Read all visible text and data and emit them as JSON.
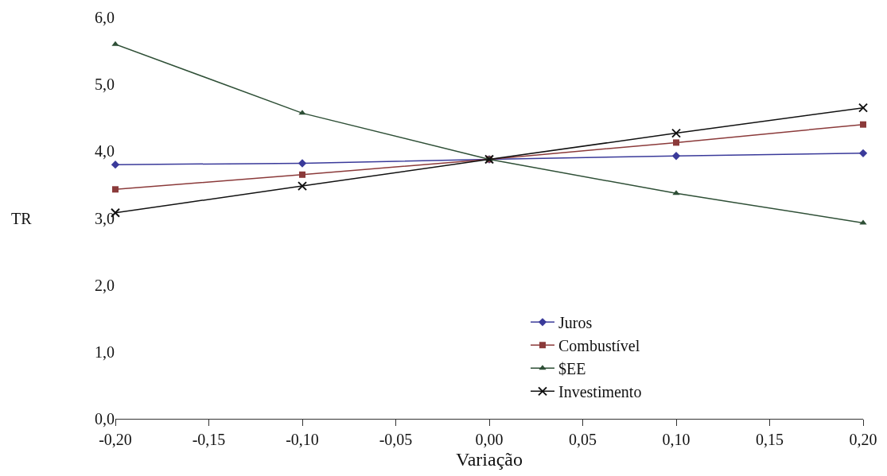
{
  "chart_data": {
    "type": "line",
    "xlabel": "Variação",
    "ylabel": "TR",
    "x": [
      -0.2,
      -0.1,
      0,
      0.1,
      0.2
    ],
    "series": [
      {
        "name": "Juros",
        "color": "#3a3a9a",
        "marker": "diamond",
        "values": [
          3.8,
          3.82,
          3.88,
          3.93,
          3.97
        ]
      },
      {
        "name": "Combustível",
        "color": "#8b3a3a",
        "marker": "square",
        "values": [
          3.43,
          3.65,
          3.88,
          4.13,
          4.4
        ]
      },
      {
        "name": "$EE",
        "color": "#2e4f36",
        "marker": "triangle",
        "values": [
          5.6,
          4.57,
          3.88,
          3.37,
          2.93
        ]
      },
      {
        "name": "Investimento",
        "color": "#111111",
        "marker": "cross",
        "values": [
          3.08,
          3.48,
          3.88,
          4.27,
          4.65
        ]
      }
    ],
    "xlim": [
      -0.2,
      0.2
    ],
    "xticks": [
      {
        "value": -0.2,
        "label": "-0,20"
      },
      {
        "value": -0.15,
        "label": "-0,15"
      },
      {
        "value": -0.1,
        "label": "-0,10"
      },
      {
        "value": -0.05,
        "label": "-0,05"
      },
      {
        "value": 0,
        "label": "0,00"
      },
      {
        "value": 0.05,
        "label": "0,05"
      },
      {
        "value": 0.1,
        "label": "0,10"
      },
      {
        "value": 0.15,
        "label": "0,15"
      },
      {
        "value": 0.2,
        "label": "0,20"
      }
    ],
    "ylim": [
      0,
      6
    ],
    "yticks": [
      {
        "value": 0,
        "label": "0,0"
      },
      {
        "value": 1,
        "label": "1,0"
      },
      {
        "value": 2,
        "label": "2,0"
      },
      {
        "value": 3,
        "label": "3,0"
      },
      {
        "value": 4,
        "label": "4,0"
      },
      {
        "value": 5,
        "label": "5,0"
      },
      {
        "value": 6,
        "label": "6,0"
      }
    ],
    "grid": false,
    "legend": "bottom right",
    "line_style": "solid"
  }
}
